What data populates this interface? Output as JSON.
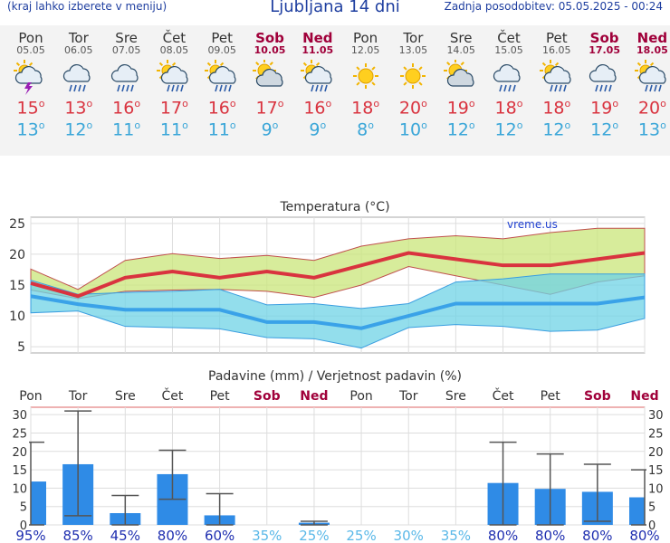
{
  "header": {
    "menu_hint": "(kraj lahko izberete v meniju)",
    "title": "Ljubljana 14 dni",
    "updated": "Zadnja posodobitev: 05.05.2025 - 00:24"
  },
  "days": [
    {
      "name": "Pon",
      "date": "05.05",
      "icon": "thunderstorm-icon",
      "weekend": false,
      "max": "15",
      "min": "13"
    },
    {
      "name": "Tor",
      "date": "06.05",
      "icon": "rain-cloud-icon",
      "weekend": false,
      "max": "13",
      "min": "12"
    },
    {
      "name": "Sre",
      "date": "07.05",
      "icon": "rain-cloud-icon",
      "weekend": false,
      "max": "16",
      "min": "11"
    },
    {
      "name": "Čet",
      "date": "08.05",
      "icon": "sun-rain-icon",
      "weekend": false,
      "max": "17",
      "min": "11"
    },
    {
      "name": "Pet",
      "date": "09.05",
      "icon": "sun-rain-icon",
      "weekend": false,
      "max": "16",
      "min": "11"
    },
    {
      "name": "Sob",
      "date": "10.05",
      "icon": "partly-cloudy-icon",
      "weekend": true,
      "max": "17",
      "min": "9"
    },
    {
      "name": "Ned",
      "date": "11.05",
      "icon": "sun-rain-icon",
      "weekend": true,
      "max": "16",
      "min": "9"
    },
    {
      "name": "Pon",
      "date": "12.05",
      "icon": "sun-icon",
      "weekend": false,
      "max": "18",
      "min": "8"
    },
    {
      "name": "Tor",
      "date": "13.05",
      "icon": "sun-icon",
      "weekend": false,
      "max": "20",
      "min": "10"
    },
    {
      "name": "Sre",
      "date": "14.05",
      "icon": "partly-cloudy-icon",
      "weekend": false,
      "max": "19",
      "min": "12"
    },
    {
      "name": "Čet",
      "date": "15.05",
      "icon": "rain-cloud-icon",
      "weekend": false,
      "max": "18",
      "min": "12"
    },
    {
      "name": "Pet",
      "date": "16.05",
      "icon": "sun-rain-icon",
      "weekend": false,
      "max": "18",
      "min": "12"
    },
    {
      "name": "Sob",
      "date": "17.05",
      "icon": "rain-cloud-icon",
      "weekend": true,
      "max": "19",
      "min": "12"
    },
    {
      "name": "Ned",
      "date": "18.05",
      "icon": "sun-rain-icon",
      "weekend": true,
      "max": "20",
      "min": "13"
    }
  ],
  "degree": "o",
  "colors": {
    "max": "#d9333f",
    "min": "#3aa6d8",
    "weekend": "#a0003a",
    "bar": "#2f8be6",
    "prob_high": "#1f2fb0",
    "prob_low": "#5ab8e8"
  },
  "chart_data": [
    {
      "type": "line",
      "title": "Temperatura (°C)",
      "watermark": "vreme.us",
      "x": [
        "05.05",
        "06.05",
        "07.05",
        "08.05",
        "09.05",
        "10.05",
        "11.05",
        "12.05",
        "13.05",
        "14.05",
        "15.05",
        "16.05",
        "17.05",
        "18.05"
      ],
      "ylim": [
        4,
        26
      ],
      "yticks": [
        5,
        10,
        15,
        20,
        25
      ],
      "series": [
        {
          "name": "max",
          "values": [
            15.3,
            13.2,
            16.2,
            17.2,
            16.2,
            17.2,
            16.2,
            18.2,
            20.2,
            19.2,
            18.2,
            18.2,
            19.2,
            20.2
          ]
        },
        {
          "name": "min",
          "values": [
            13.2,
            11.9,
            11.0,
            11.0,
            11.0,
            9.0,
            9.0,
            8.0,
            10.0,
            12.0,
            12.0,
            12.0,
            12.0,
            13.0
          ]
        }
      ],
      "max_band": {
        "upper": [
          17.6,
          14.3,
          19.0,
          20.1,
          19.3,
          19.8,
          19.0,
          21.3,
          22.5,
          23.0,
          22.5,
          23.5,
          24.2,
          24.2
        ],
        "lower": [
          14.2,
          12.8,
          14.0,
          14.2,
          14.3,
          14.0,
          13.0,
          15.0,
          18.0,
          16.5,
          15.0,
          13.5,
          15.5,
          16.5
        ]
      },
      "min_band": {
        "upper": [
          15.8,
          13.5,
          13.8,
          14.0,
          14.3,
          11.8,
          12.0,
          11.2,
          12.0,
          15.5,
          16.0,
          16.8,
          16.8,
          16.8
        ],
        "lower": [
          10.5,
          10.8,
          8.3,
          8.1,
          7.9,
          6.5,
          6.3,
          4.8,
          8.1,
          8.6,
          8.3,
          7.5,
          7.7,
          9.6
        ]
      },
      "grid": true
    },
    {
      "type": "bar",
      "title": "Padavine (mm) / Verjetnost padavin (%)",
      "categories": [
        "Pon",
        "Tor",
        "Sre",
        "Čet",
        "Pet",
        "Sob",
        "Ned",
        "Pon",
        "Tor",
        "Sre",
        "Čet",
        "Pet",
        "Sob",
        "Ned"
      ],
      "weekend": [
        false,
        false,
        false,
        false,
        false,
        true,
        true,
        false,
        false,
        false,
        false,
        false,
        true,
        true
      ],
      "values": [
        11.8,
        16.5,
        3.2,
        13.8,
        2.6,
        0,
        0.6,
        0,
        0,
        0,
        11.4,
        9.8,
        9.0,
        7.5
      ],
      "err_high": [
        22.5,
        31.0,
        8.0,
        20.3,
        8.5,
        0,
        1.0,
        0,
        0,
        0,
        22.5,
        19.3,
        16.5,
        15.0
      ],
      "err_low": [
        0,
        2.5,
        0,
        7.0,
        0,
        0,
        0,
        0,
        0,
        0,
        0,
        0,
        1.0,
        0
      ],
      "probability": [
        "95%",
        "85%",
        "45%",
        "80%",
        "60%",
        "35%",
        "25%",
        "25%",
        "30%",
        "35%",
        "80%",
        "80%",
        "80%",
        "80%"
      ],
      "ylim": [
        0,
        32
      ],
      "yticks": [
        0,
        5,
        10,
        15,
        20,
        25,
        30
      ],
      "grid": true
    }
  ]
}
